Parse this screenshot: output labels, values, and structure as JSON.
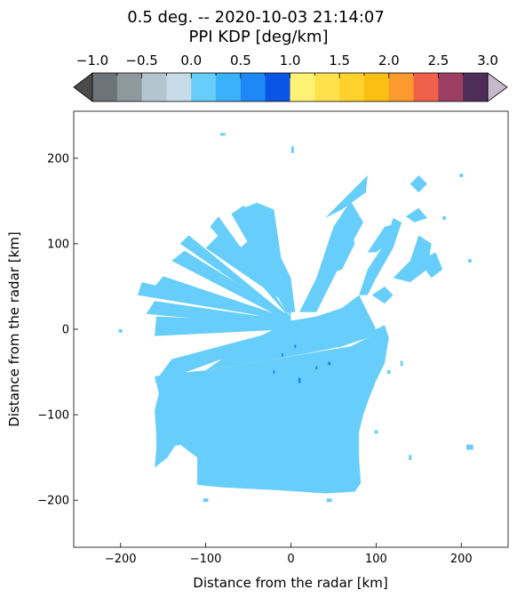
{
  "chart_data": {
    "type": "heatmap",
    "title_line1": "0.5 deg. -- 2020-10-03 21:14:07",
    "title_line2": "PPI KDP [deg/km]",
    "xlabel": "Distance from the radar [km]",
    "ylabel": "Distance from the radar [km]",
    "xlim": [
      -255,
      255
    ],
    "ylim": [
      -255,
      255
    ],
    "xticks": [
      -200,
      -100,
      0,
      100,
      200
    ],
    "yticks": [
      200,
      100,
      0,
      -100,
      -200
    ],
    "xtick_labels": [
      "−200",
      "−100",
      "0",
      "100",
      "200"
    ],
    "ytick_labels": [
      "200",
      "100",
      "0",
      "−100",
      "−200"
    ],
    "colorbar": {
      "label_values": [
        -1.0,
        -0.5,
        0.0,
        0.5,
        1.0,
        1.5,
        2.0,
        2.5,
        3.0
      ],
      "labels": [
        "−1.0",
        "−0.5",
        "0.0",
        "0.5",
        "1.0",
        "1.5",
        "2.0",
        "2.5",
        "3.0"
      ],
      "range": [
        -1.0,
        3.0
      ],
      "step": 0.25,
      "colors": [
        "#6e7377",
        "#8e999e",
        "#b3c6d0",
        "#c7dce8",
        "#67cefb",
        "#3bb0fb",
        "#1d88f6",
        "#0b55e6",
        "#fff275",
        "#ffe14b",
        "#ffd12b",
        "#fbbf14",
        "#fd9a2e",
        "#f1604a",
        "#9c3f63",
        "#4f2d59"
      ],
      "under_color": "#4a4a4a",
      "over_color": "#c7b9cc",
      "extend": "both"
    },
    "field": {
      "main_color": "#67cefb",
      "accent_color": "#1d88f6",
      "description_value_range": "mostly 0.0 to 0.25 deg/km"
    }
  }
}
